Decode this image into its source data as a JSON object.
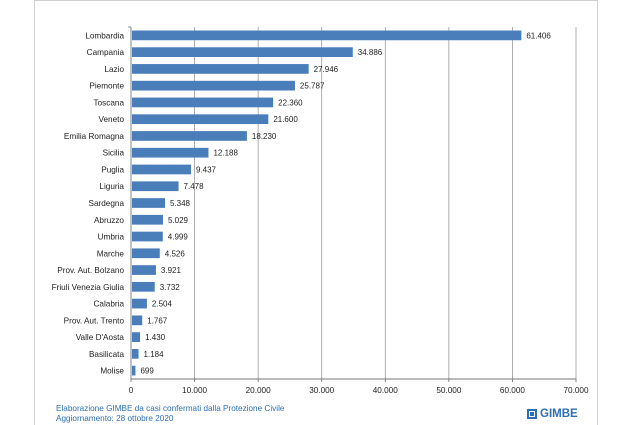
{
  "chart_data": {
    "type": "bar",
    "orientation": "horizontal",
    "categories": [
      "Lombardia",
      "Campania",
      "Lazio",
      "Piemonte",
      "Toscana",
      "Veneto",
      "Emilia Romagna",
      "Sicilia",
      "Puglia",
      "Liguria",
      "Sardegna",
      "Abruzzo",
      "Umbria",
      "Marche",
      "Prov. Aut. Bolzano",
      "Friuli Venezia Giulia",
      "Calabria",
      "Prov. Aut. Trento",
      "Valle D'Aosta",
      "Basilicata",
      "Molise"
    ],
    "values": [
      61406,
      34886,
      27946,
      25787,
      22360,
      21600,
      18230,
      12188,
      9437,
      7478,
      5348,
      5029,
      4999,
      4526,
      3921,
      3732,
      2504,
      1767,
      1430,
      1184,
      699
    ],
    "value_labels": [
      "61.406",
      "34.886",
      "27.946",
      "25.787",
      "22.360",
      "21.600",
      "18.230",
      "12.188",
      "9.437",
      "7.478",
      "5.348",
      "5.029",
      "4.999",
      "4.526",
      "3.921",
      "3.732",
      "2.504",
      "1.767",
      "1.430",
      "1.184",
      "699"
    ],
    "xlim": [
      0,
      70000
    ],
    "xticks": [
      0,
      10000,
      20000,
      30000,
      40000,
      50000,
      60000,
      70000
    ],
    "xtick_labels": [
      "0",
      "10.000",
      "20.000",
      "30.000",
      "40.000",
      "50.000",
      "60.000",
      "70.000"
    ],
    "grid": true,
    "bar_color": "#4a7ebb",
    "title": "",
    "xlabel": "",
    "ylabel": ""
  },
  "footer": {
    "line1": "Elaborazione GIMBE da casi confermati dalla Protezione Civile",
    "line2": "Aggiornamento: 28 ottobre 2020",
    "brand": "GIMBE",
    "brand_icon": "gimbe-logo-icon",
    "text_color": "#2c6fb5"
  }
}
